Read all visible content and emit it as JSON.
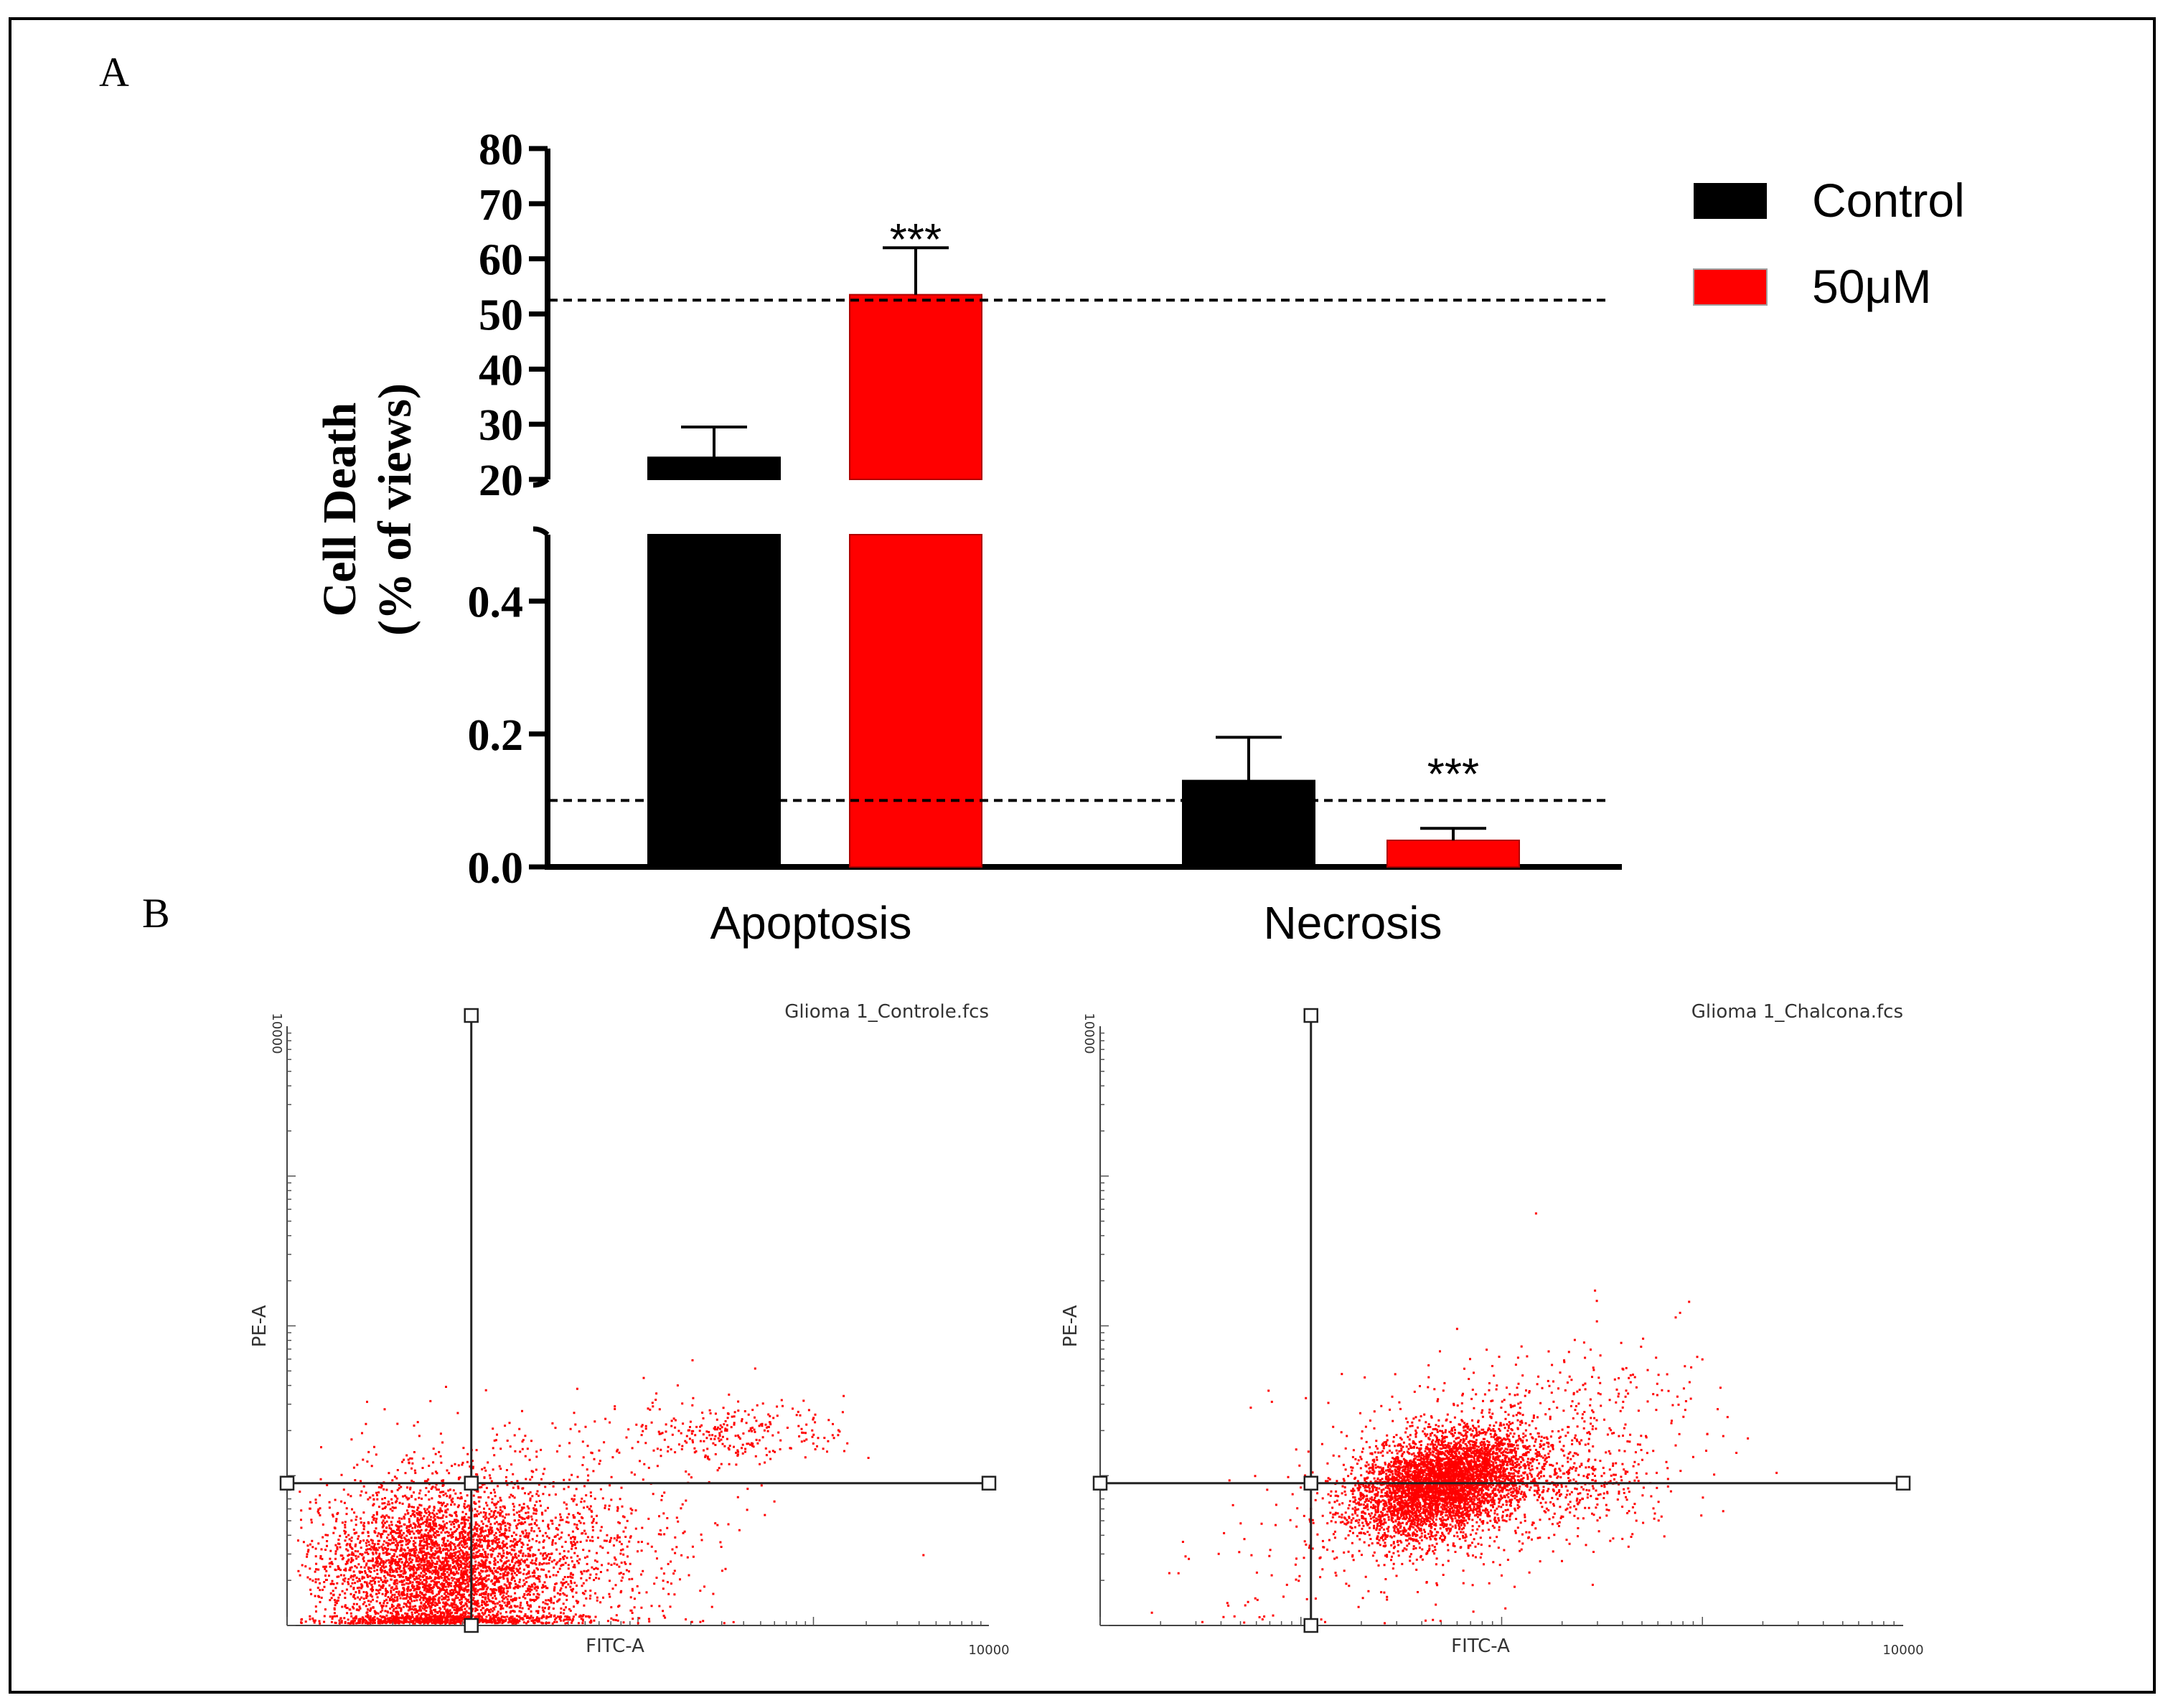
{
  "figure": {
    "panel_a_label": "A",
    "panel_b_label": "B"
  },
  "colors": {
    "control": "#000000",
    "treatment": "#ff0000",
    "dots": "#ff0000",
    "axis": "#000000"
  },
  "chart_data": [
    {
      "type": "bar",
      "title": "",
      "categories": [
        "Apoptosis",
        "Necrosis"
      ],
      "ylabel_line1": "Cell Death",
      "ylabel_line2": "(% of views)",
      "series": [
        {
          "name": "Control",
          "values": [
            24,
            0.13
          ],
          "errors": [
            5.5,
            0.065
          ]
        },
        {
          "name": "50μM",
          "values": [
            53.5,
            0.04
          ],
          "errors": [
            8.5,
            0.018
          ]
        }
      ],
      "significance": [
        "***",
        "***"
      ],
      "y_axis_broken": true,
      "y_lower_range": [
        0,
        0.5
      ],
      "y_lower_ticks": [
        "0.0",
        "0.2",
        "0.4"
      ],
      "y_upper_range": [
        20,
        80
      ],
      "y_upper_ticks": [
        "20",
        "30",
        "40",
        "50",
        "60",
        "70",
        "80"
      ],
      "reference_lines": [
        52.5,
        0.1
      ],
      "legend_position": "top-right"
    },
    {
      "type": "scatter",
      "title": "Glioma 1_Controle.fcs",
      "xlabel": "FITC-A",
      "ylabel": "PE-A",
      "x_scale": "log",
      "y_scale": "log",
      "xmax_label": "10000",
      "ymax_label": "10000",
      "quadrant_gate": [
        1.05,
        0.95
      ],
      "populations": [
        {
          "cx": 0.85,
          "cy": 0.35,
          "sx": 0.32,
          "sy": 0.3,
          "n": 5200
        },
        {
          "cx": 1.45,
          "cy": 0.45,
          "sx": 0.4,
          "sy": 0.32,
          "n": 900
        },
        {
          "cx": 2.55,
          "cy": 1.3,
          "sx": 0.32,
          "sy": 0.1,
          "n": 260
        },
        {
          "cx": 1.8,
          "cy": 0.95,
          "sx": 0.6,
          "sy": 0.35,
          "n": 120
        }
      ],
      "sparse_points": [
        [
          0.45,
          1.5
        ],
        [
          0.9,
          1.6
        ],
        [
          0.55,
          1.45
        ],
        [
          1.6,
          0.75
        ]
      ]
    },
    {
      "type": "scatter",
      "title": "Glioma 1_Chalcona.fcs",
      "xlabel": "FITC-A",
      "ylabel": "PE-A",
      "x_scale": "log",
      "y_scale": "log",
      "xmax_label": "10000",
      "ymax_label": "10000",
      "quadrant_gate": [
        1.05,
        0.95
      ],
      "populations": [
        {
          "cx": 1.7,
          "cy": 0.95,
          "sx": 0.23,
          "sy": 0.15,
          "n": 4400,
          "rot": 0.55
        },
        {
          "cx": 1.9,
          "cy": 1.05,
          "sx": 0.55,
          "sy": 0.32,
          "n": 1000,
          "rot": 0.5
        },
        {
          "cx": 2.4,
          "cy": 0.95,
          "sx": 0.2,
          "sy": 0.12,
          "n": 200
        },
        {
          "cx": 0.9,
          "cy": 0.3,
          "sx": 0.3,
          "sy": 0.25,
          "n": 40
        }
      ],
      "sparse_points": [
        [
          0.85,
          1.5
        ],
        [
          2.6,
          1.5
        ],
        [
          2.9,
          1.4
        ]
      ]
    }
  ]
}
